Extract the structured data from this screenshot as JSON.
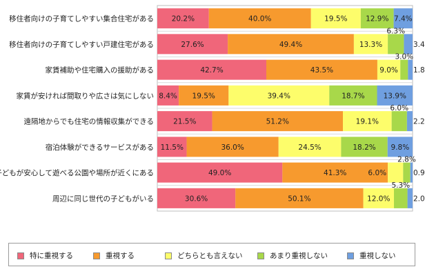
{
  "chart_data": {
    "type": "bar",
    "orientation": "horizontal",
    "stacked": true,
    "percent_stacked": true,
    "categories": [
      "移住者向けの子育てしやすい集合住宅がある",
      "移住者向けの子育てしやすい戸建住宅がある",
      "家賃補助や住宅購入の援助がある",
      "家賃が安ければ間取りや広さは気にしない",
      "遠隔地からでも住宅の情報収集ができる",
      "宿泊体験ができるサービスがある",
      "子どもが安心して遊べる公園や場所が近くにある",
      "周辺に同じ世代の子どもがいる"
    ],
    "series": [
      {
        "name": "特に重視する",
        "color": "#f0667a",
        "values": [
          20.2,
          27.6,
          42.7,
          8.4,
          21.5,
          11.5,
          49.0,
          30.6
        ],
        "labels": [
          "20.2%",
          "27.6%",
          "42.7%",
          "8.4%",
          "21.5%",
          "11.5%",
          "49.0%",
          "30.6%"
        ]
      },
      {
        "name": "重視する",
        "color": "#f79a2e",
        "values": [
          40.0,
          49.4,
          43.5,
          19.5,
          51.2,
          36.0,
          41.3,
          50.1
        ],
        "labels": [
          "40.0%",
          "49.4%",
          "43.5%",
          "19.5%",
          "51.2%",
          "36.0%",
          "41.3%",
          "50.1%"
        ]
      },
      {
        "name": "どちらとも言えない",
        "color": "#fdfd6b",
        "values": [
          19.5,
          13.3,
          9.0,
          39.4,
          19.1,
          24.5,
          6.0,
          12.0
        ],
        "labels": [
          "19.5%",
          "13.3%",
          "9.0%",
          "39.4%",
          "19.1%",
          "24.5%",
          "6.0%",
          "12.0%"
        ]
      },
      {
        "name": "あまり重視しない",
        "color": "#a8d84a",
        "values": [
          12.9,
          6.3,
          3.0,
          18.7,
          6.0,
          18.2,
          2.8,
          5.3
        ],
        "labels": [
          "12.9%",
          "6.3%",
          "3.0%",
          "18.7%",
          "6.0%",
          "18.2%",
          "2.8%",
          "5.3%"
        ]
      },
      {
        "name": "重視しない",
        "color": "#6f9fe0",
        "values": [
          7.4,
          3.4,
          1.8,
          13.9,
          2.2,
          9.8,
          0.9,
          2.0
        ],
        "labels": [
          "7.4%",
          "3.4%",
          "1.8%",
          "13.9%",
          "2.2%",
          "9.8%",
          "0.9%",
          "2.0%"
        ]
      }
    ],
    "xlim": [
      0,
      100
    ],
    "grid": false,
    "legend_position": "bottom"
  }
}
